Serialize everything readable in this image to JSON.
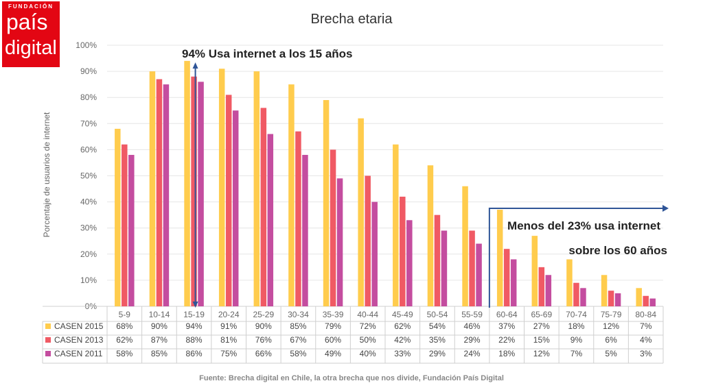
{
  "logo": {
    "line_small": "FUNDACIÓN",
    "line1": "país",
    "line2": "digital"
  },
  "chart_data": {
    "type": "bar",
    "title": "Brecha etaria",
    "ylabel": "Porcentaje de usuarios de internet",
    "xlabel": "",
    "ylim": [
      0,
      100
    ],
    "yticks": [
      "0%",
      "10%",
      "20%",
      "30%",
      "40%",
      "50%",
      "60%",
      "70%",
      "80%",
      "90%",
      "100%"
    ],
    "categories": [
      "5-9",
      "10-14",
      "15-19",
      "20-24",
      "25-29",
      "30-34",
      "35-39",
      "40-44",
      "45-49",
      "50-54",
      "55-59",
      "60-64",
      "65-69",
      "70-74",
      "75-79",
      "80-84"
    ],
    "series": [
      {
        "name": "CASEN 2015",
        "color": "#ffcc4d",
        "values": [
          68,
          90,
          94,
          91,
          90,
          85,
          79,
          72,
          62,
          54,
          46,
          37,
          27,
          18,
          12,
          7
        ],
        "labels": [
          "68%",
          "90%",
          "94%",
          "91%",
          "90%",
          "85%",
          "79%",
          "72%",
          "62%",
          "54%",
          "46%",
          "37%",
          "27%",
          "18%",
          "12%",
          "7%"
        ]
      },
      {
        "name": "CASEN 2013",
        "color": "#f05a64",
        "values": [
          62,
          87,
          88,
          81,
          76,
          67,
          60,
          50,
          42,
          35,
          29,
          22,
          15,
          9,
          6,
          4
        ],
        "labels": [
          "62%",
          "87%",
          "88%",
          "81%",
          "76%",
          "67%",
          "60%",
          "50%",
          "42%",
          "35%",
          "29%",
          "22%",
          "15%",
          "9%",
          "6%",
          "4%"
        ]
      },
      {
        "name": "CASEN 2011",
        "color": "#c44d9f",
        "values": [
          58,
          85,
          86,
          75,
          66,
          58,
          49,
          40,
          33,
          29,
          24,
          18,
          12,
          7,
          5,
          3
        ],
        "labels": [
          "58%",
          "85%",
          "86%",
          "75%",
          "66%",
          "58%",
          "49%",
          "40%",
          "33%",
          "29%",
          "24%",
          "18%",
          "12%",
          "7%",
          "5%",
          "3%"
        ]
      }
    ],
    "annotations": [
      "94% Usa internet a los 15 años",
      "Menos del 23% usa internet",
      "sobre los 60 años"
    ],
    "source": "Fuente: Brecha digital en Chile, la otra brecha que nos divide, Fundación País Digital"
  }
}
